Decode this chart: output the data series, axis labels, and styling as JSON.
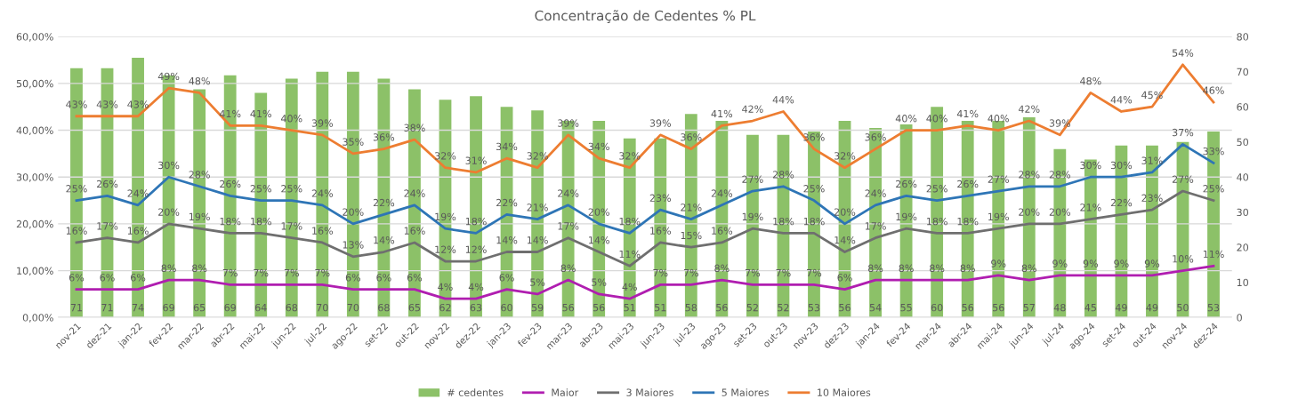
{
  "chart_data": {
    "type": "bar",
    "title": "Concentração de Cedentes % PL",
    "categories": [
      "nov-21",
      "dez-21",
      "jan-22",
      "fev-22",
      "mar-22",
      "abr-22",
      "mai-22",
      "jun-22",
      "jul-22",
      "ago-22",
      "set-22",
      "out-22",
      "nov-22",
      "dez-22",
      "jan-23",
      "fev-23",
      "mar-23",
      "abr-23",
      "mai-23",
      "jun-23",
      "jul-23",
      "ago-23",
      "set-23",
      "out-23",
      "nov-23",
      "dez-23",
      "jan-24",
      "fev-24",
      "mar-24",
      "abr-24",
      "mai-24",
      "jun-24",
      "jul-24",
      "ago-24",
      "set-24",
      "out-24",
      "nov-24",
      "dez-24"
    ],
    "series": [
      {
        "name": "# cedentes",
        "axis": "y2",
        "color": "#8cc168",
        "values": [
          71,
          71,
          74,
          69,
          65,
          69,
          64,
          68,
          70,
          70,
          68,
          65,
          62,
          63,
          60,
          59,
          56,
          56,
          51,
          51,
          58,
          56,
          52,
          52,
          53,
          56,
          54,
          55,
          60,
          56,
          56,
          57,
          48,
          45,
          49,
          49,
          50,
          53
        ],
        "value_labels": [
          "71",
          "71",
          "74",
          "69",
          "65",
          "69",
          "64",
          "68",
          "70",
          "70",
          "68",
          "65",
          "62",
          "63",
          "60",
          "59",
          "56",
          "56",
          "51",
          "51",
          "58",
          "56",
          "52",
          "52",
          "53",
          "56",
          "54",
          "55",
          "60",
          "56",
          "56",
          "57",
          "48",
          "45",
          "49",
          "49",
          "50",
          "53"
        ]
      },
      {
        "name": "Maior",
        "type": "line",
        "color": "#b01eb0",
        "values": [
          6,
          6,
          6,
          8,
          8,
          7,
          7,
          7,
          7,
          6,
          6,
          6,
          4,
          4,
          6,
          5,
          8,
          5,
          4,
          7,
          7,
          8,
          7,
          7,
          7,
          6,
          8,
          8,
          8,
          8,
          9,
          8,
          9,
          9,
          9,
          9,
          10,
          11
        ],
        "value_labels": [
          "6%",
          "6%",
          "6%",
          "8%",
          "8%",
          "7%",
          "7%",
          "7%",
          "7%",
          "6%",
          "6%",
          "6%",
          "4%",
          "4%",
          "6%",
          "5%",
          "8%",
          "5%",
          "4%",
          "7%",
          "7%",
          "8%",
          "7%",
          "7%",
          "7%",
          "6%",
          "8%",
          "8%",
          "8%",
          "8%",
          "9%",
          "8%",
          "9%",
          "9%",
          "9%",
          "9%",
          "10%",
          "11%"
        ]
      },
      {
        "name": "3 Maiores",
        "type": "line",
        "color": "#6f6f6f",
        "values": [
          16,
          17,
          16,
          20,
          19,
          18,
          18,
          17,
          16,
          13,
          14,
          16,
          12,
          12,
          14,
          14,
          17,
          14,
          11,
          16,
          15,
          16,
          19,
          18,
          18,
          14,
          17,
          19,
          18,
          18,
          19,
          20,
          20,
          21,
          22,
          23,
          27,
          25
        ],
        "value_labels": [
          "16%",
          "17%",
          "16%",
          "20%",
          "19%",
          "18%",
          "18%",
          "17%",
          "16%",
          "13%",
          "14%",
          "16%",
          "12%",
          "12%",
          "14%",
          "14%",
          "17%",
          "14%",
          "11%",
          "16%",
          "15%",
          "16%",
          "19%",
          "18%",
          "18%",
          "14%",
          "17%",
          "19%",
          "18%",
          "18%",
          "19%",
          "20%",
          "20%",
          "21%",
          "22%",
          "23%",
          "27%",
          "25%"
        ]
      },
      {
        "name": "5 Maiores",
        "type": "line",
        "color": "#2e75b6",
        "values": [
          25,
          26,
          24,
          30,
          28,
          26,
          25,
          25,
          24,
          20,
          22,
          24,
          19,
          18,
          22,
          21,
          24,
          20,
          18,
          23,
          21,
          24,
          27,
          28,
          25,
          20,
          24,
          26,
          25,
          26,
          27,
          28,
          28,
          30,
          30,
          31,
          37,
          33
        ],
        "value_labels": [
          "25%",
          "26%",
          "24%",
          "30%",
          "28%",
          "26%",
          "25%",
          "25%",
          "24%",
          "20%",
          "22%",
          "24%",
          "19%",
          "18%",
          "22%",
          "21%",
          "24%",
          "20%",
          "18%",
          "23%",
          "21%",
          "24%",
          "27%",
          "28%",
          "25%",
          "20%",
          "24%",
          "26%",
          "25%",
          "26%",
          "27%",
          "28%",
          "28%",
          "30%",
          "30%",
          "31%",
          "37%",
          "33%"
        ]
      },
      {
        "name": "10 Maiores",
        "type": "line",
        "color": "#ed7d31",
        "values": [
          43,
          43,
          43,
          49,
          48,
          41,
          41,
          40,
          39,
          35,
          36,
          38,
          32,
          31,
          34,
          32,
          39,
          34,
          32,
          39,
          36,
          41,
          42,
          44,
          36,
          32,
          36,
          40,
          40,
          41,
          40,
          42,
          39,
          48,
          44,
          45,
          54,
          46
        ],
        "value_labels": [
          "43%",
          "43%",
          "43%",
          "49%",
          "48%",
          "41%",
          "41%",
          "40%",
          "39%",
          "35%",
          "36%",
          "38%",
          "32%",
          "31%",
          "34%",
          "32%",
          "39%",
          "34%",
          "32%",
          "39%",
          "36%",
          "41%",
          "42%",
          "44%",
          "36%",
          "32%",
          "36%",
          "40%",
          "40%",
          "41%",
          "40%",
          "42%",
          "39%",
          "48%",
          "44%",
          "45%",
          "54%",
          "46%"
        ]
      }
    ],
    "ylim": [
      0,
      60
    ],
    "yticks": [
      {
        "value": 0,
        "label": "0,00%"
      },
      {
        "value": 10,
        "label": "10,00%"
      },
      {
        "value": 20,
        "label": "20,00%"
      },
      {
        "value": 30,
        "label": "30,00%"
      },
      {
        "value": 40,
        "label": "40,00%"
      },
      {
        "value": 50,
        "label": "50,00%"
      },
      {
        "value": 60,
        "label": "60,00%"
      }
    ],
    "y2lim": [
      0,
      80
    ],
    "y2ticks": [
      0,
      10,
      20,
      30,
      40,
      50,
      60,
      70,
      80
    ],
    "grid": "y",
    "legend": "bottom"
  }
}
